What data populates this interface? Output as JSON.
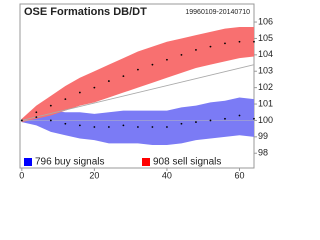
{
  "chart_data": {
    "type": "band-line",
    "title": "OSE Formations DB/DT",
    "subtitle": "19960109-20140710",
    "x": [
      0,
      4,
      8,
      12,
      16,
      20,
      24,
      28,
      32,
      36,
      40,
      44,
      48,
      52,
      56,
      60,
      64
    ],
    "xlim": [
      -0.5,
      64
    ],
    "xticks": [
      0,
      20,
      40,
      60
    ],
    "ylim": [
      97.1,
      107.1
    ],
    "yticks": [
      98,
      99,
      100,
      101,
      102,
      103,
      104,
      105,
      106
    ],
    "series": [
      {
        "name": "796 buy signals",
        "color": "#0000ff",
        "band_color": "#7b7bf5",
        "values": [
          100,
          100.2,
          100.0,
          99.8,
          99.7,
          99.6,
          99.6,
          99.7,
          99.6,
          99.6,
          99.6,
          99.8,
          99.9,
          100.0,
          100.1,
          100.3,
          100.1
        ],
        "upper": [
          100.1,
          100.6,
          100.6,
          100.5,
          100.5,
          100.4,
          100.5,
          100.6,
          100.6,
          100.6,
          100.6,
          100.8,
          100.9,
          101.1,
          101.2,
          101.4,
          101.3
        ],
        "lower": [
          99.9,
          99.7,
          99.3,
          99.1,
          98.9,
          98.8,
          98.6,
          98.6,
          98.6,
          98.5,
          98.5,
          98.6,
          98.8,
          98.9,
          99.0,
          99.1,
          99.0
        ]
      },
      {
        "name": "908 sell signals",
        "color": "#ff0000",
        "band_color": "#f87070",
        "values": [
          100,
          100.5,
          100.9,
          101.3,
          101.7,
          102.0,
          102.4,
          102.7,
          103.1,
          103.4,
          103.7,
          104.0,
          104.3,
          104.5,
          104.7,
          104.8,
          104.8
        ],
        "upper": [
          100.1,
          100.9,
          101.5,
          102.1,
          102.6,
          103.0,
          103.4,
          103.8,
          104.2,
          104.5,
          104.8,
          105.0,
          105.2,
          105.4,
          105.6,
          105.7,
          105.7
        ],
        "lower": [
          99.9,
          100.1,
          100.3,
          100.6,
          100.9,
          101.1,
          101.4,
          101.7,
          102.0,
          102.3,
          102.6,
          102.9,
          103.2,
          103.4,
          103.6,
          103.8,
          103.9
        ]
      }
    ],
    "benchmark": {
      "x": [
        0,
        64
      ],
      "values": [
        100,
        103.4
      ],
      "color": "#aaaaaa"
    }
  }
}
